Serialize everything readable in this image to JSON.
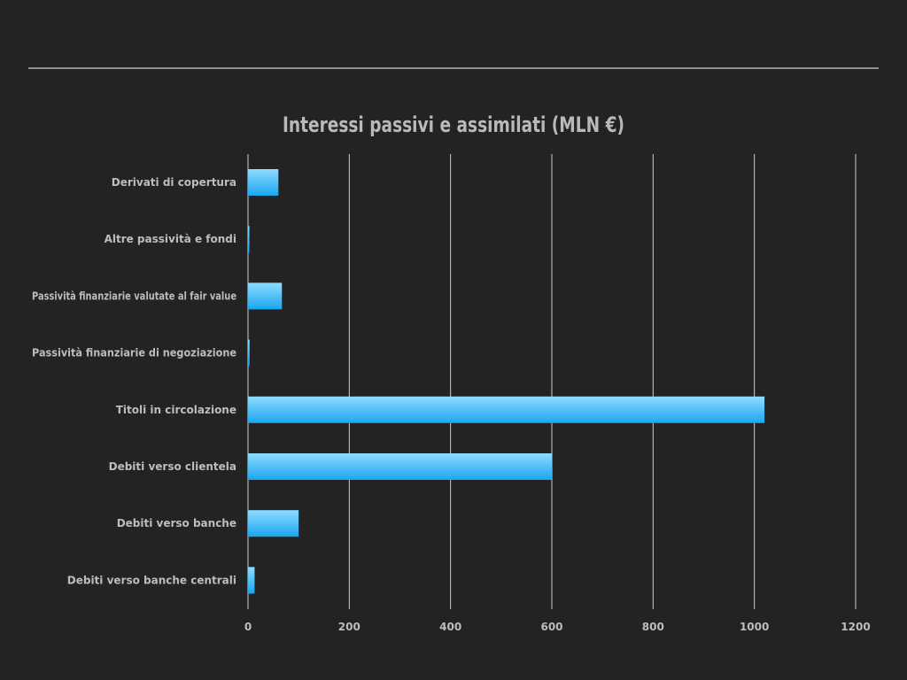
{
  "chart_data": {
    "type": "bar",
    "orientation": "horizontal",
    "title": "Interessi passivi e assimilati (MLN €)",
    "xlabel": "",
    "ylabel": "",
    "categories": [
      "Derivati di copertura",
      "Altre passività e fondi",
      "Passività finanziarie valutate al fair value",
      "Passività finanziarie di negoziazione",
      "Titoli in circolazione",
      "Debiti verso clientela",
      "Debiti verso banche",
      "Debiti verso banche centrali"
    ],
    "values": [
      60,
      1,
      67,
      3,
      1020,
      600,
      100,
      13
    ],
    "xlim": [
      0,
      1200
    ],
    "xticks": [
      0,
      200,
      400,
      600,
      800,
      1000,
      1200
    ],
    "grid": true,
    "legend": "none",
    "colors": {
      "bar_top": "#8fdcff",
      "bar_bottom": "#1aa6f0",
      "background": "#232323",
      "text": "#bdbdbd"
    }
  }
}
